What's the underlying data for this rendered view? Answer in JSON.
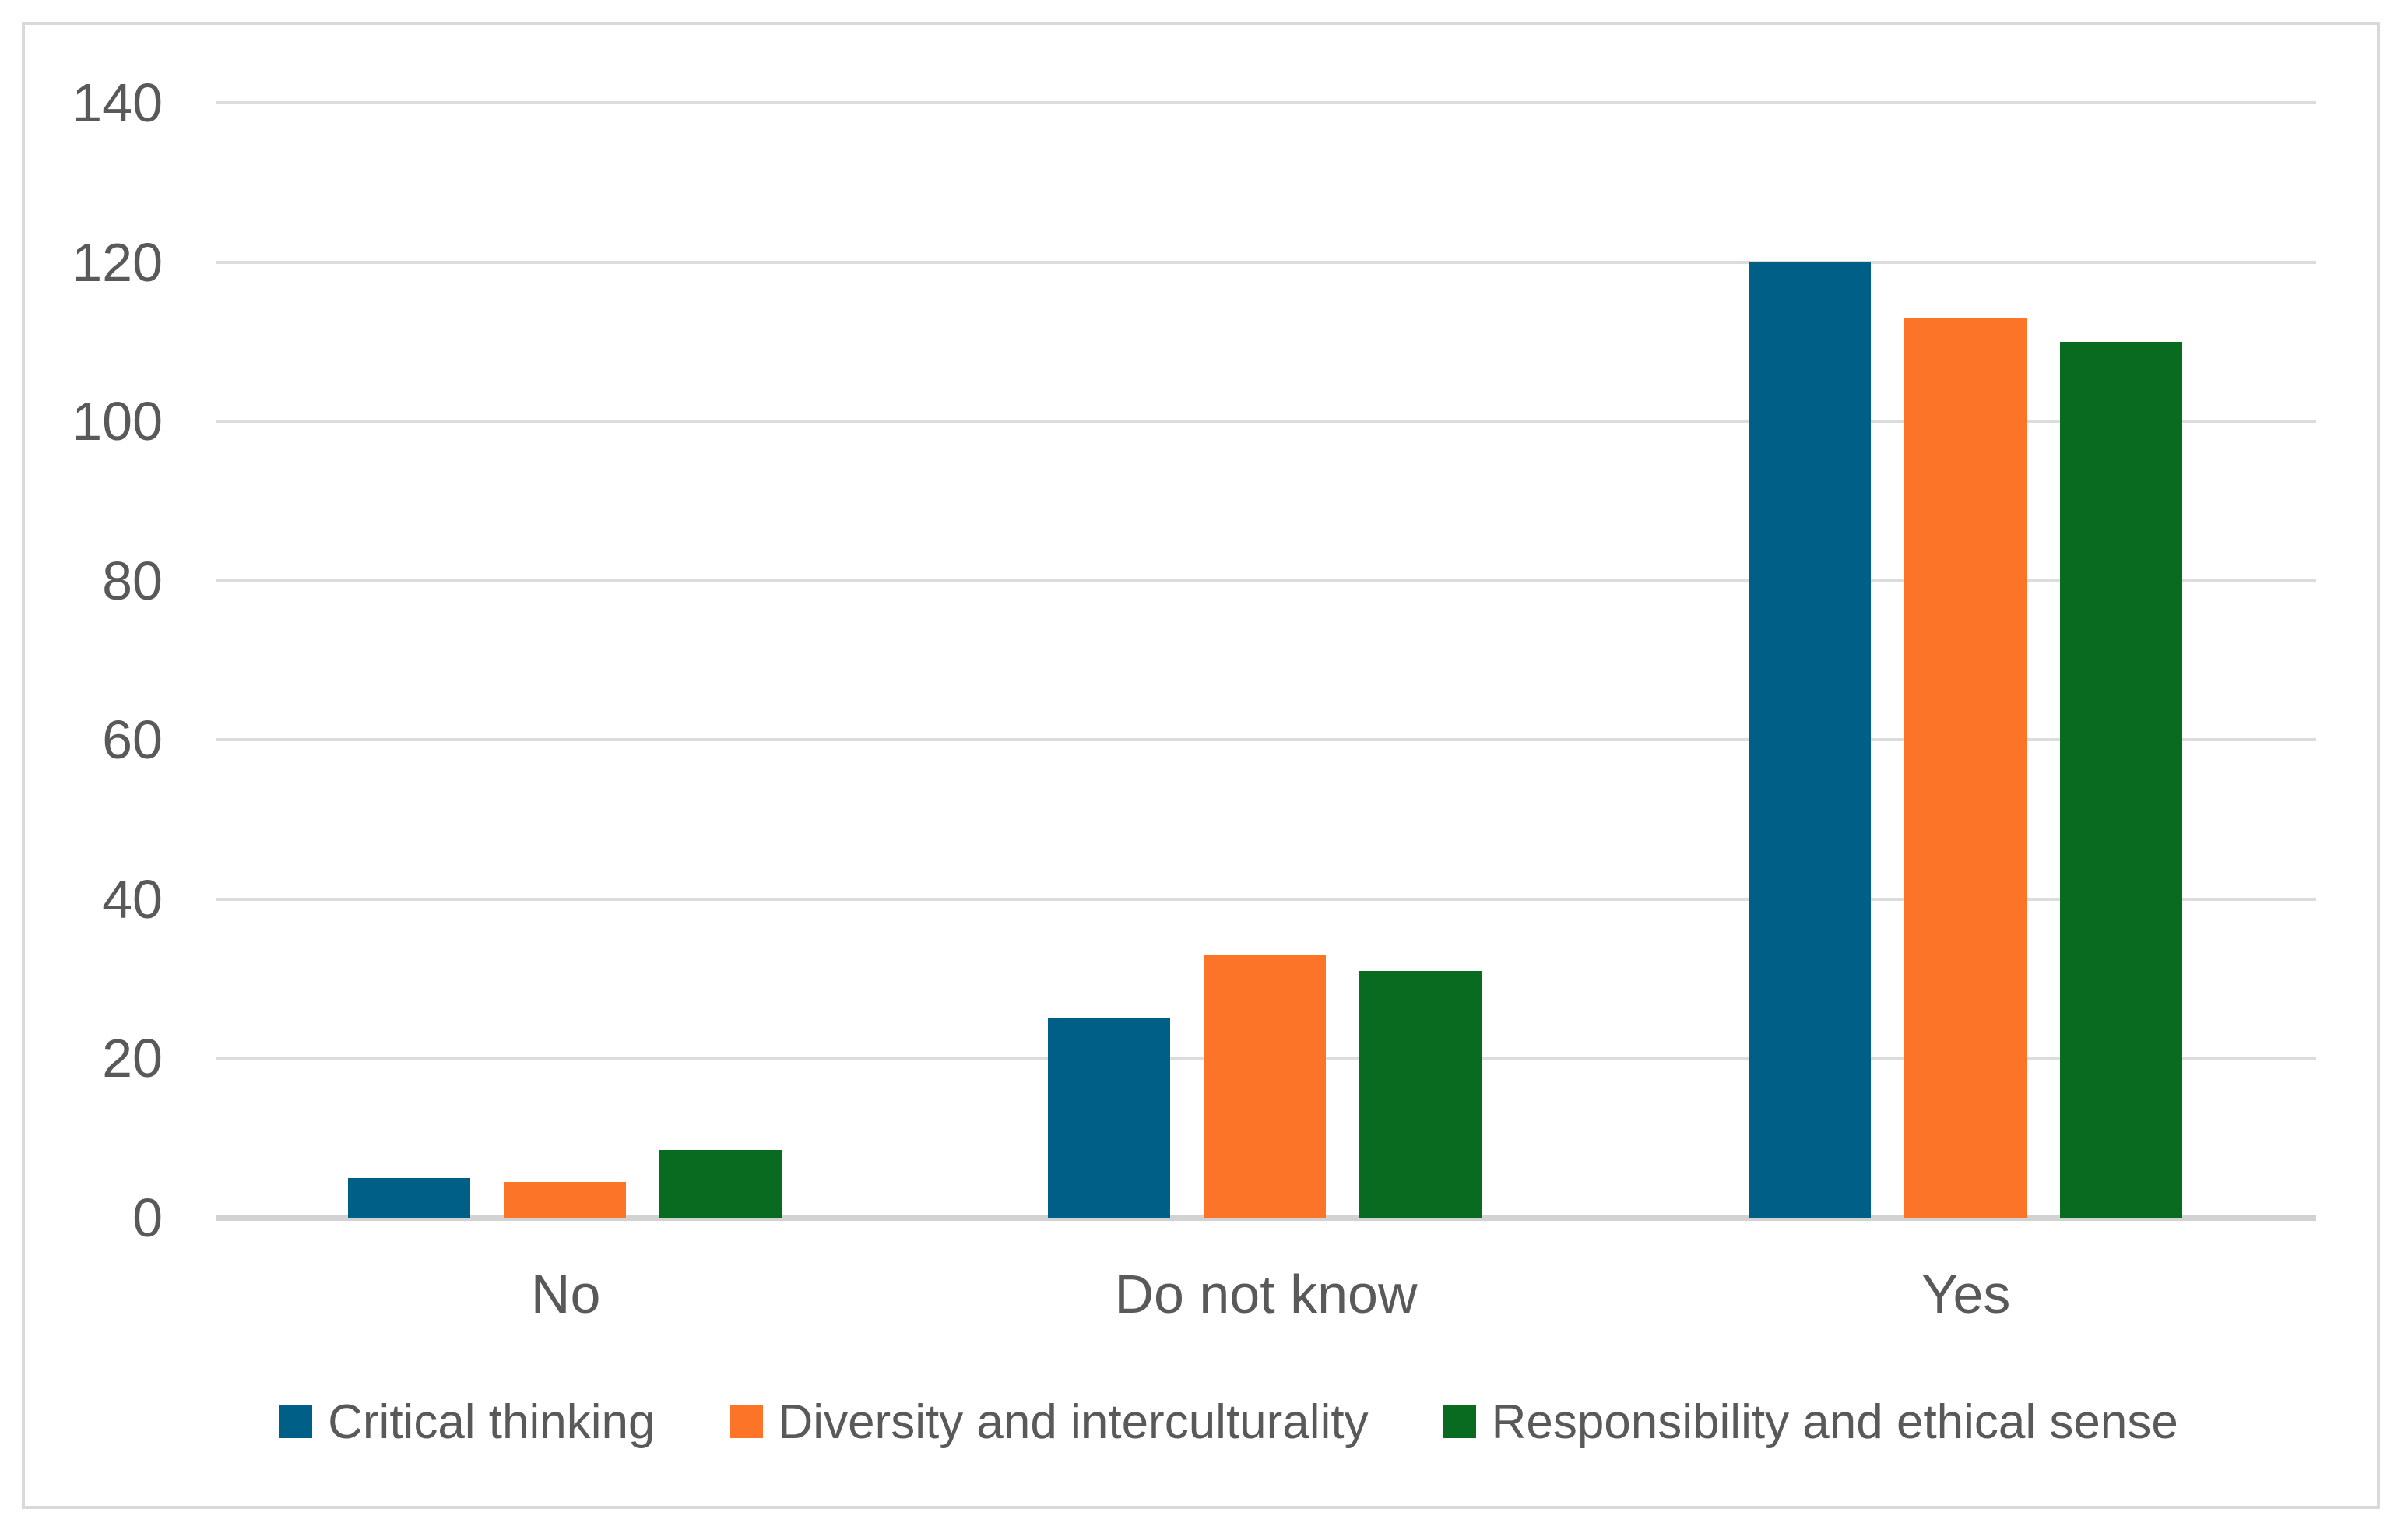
{
  "chart_data": {
    "type": "bar",
    "title": "",
    "xlabel": "",
    "ylabel": "",
    "categories": [
      "No",
      "Do not know",
      "Yes"
    ],
    "series": [
      {
        "name": "Critical thinking",
        "color": "#005F87",
        "values": [
          5,
          25,
          120
        ]
      },
      {
        "name": "Diversity and interculturality",
        "color": "#FB7428",
        "values": [
          4.5,
          33,
          113
        ]
      },
      {
        "name": "Responsibility and ethical sense",
        "color": "#086B1F",
        "values": [
          8.5,
          31,
          110
        ]
      }
    ],
    "ylim": [
      0,
      140
    ],
    "ytick_interval": 20,
    "ytick_labels": [
      "0",
      "20",
      "40",
      "60",
      "80",
      "100",
      "120",
      "140"
    ],
    "grid": "horizontal",
    "legend_position": "bottom",
    "colors": {
      "axis_text": "#595959",
      "gridline": "#DCDCDC",
      "axis_line": "#D2D2D2",
      "frame_border": "#D9D9D9",
      "background": "#FFFFFF"
    }
  }
}
